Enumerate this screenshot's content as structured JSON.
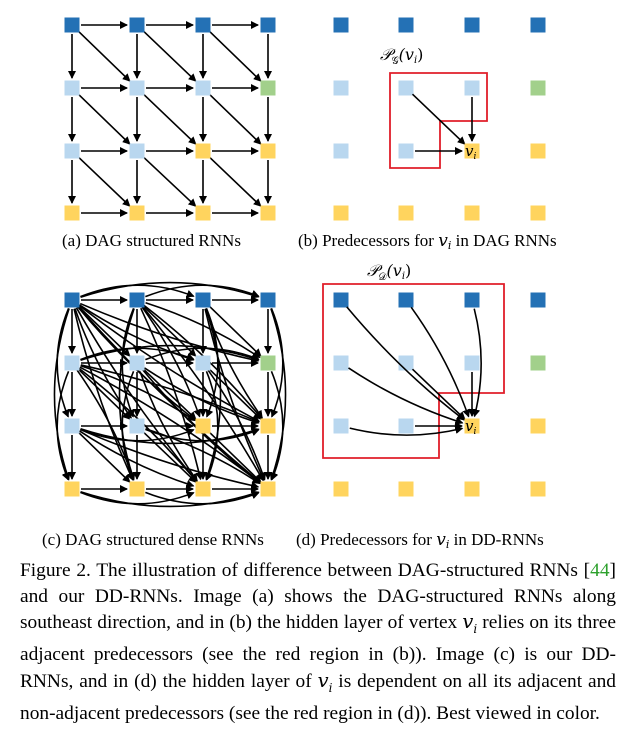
{
  "colors": {
    "dark_blue": "#2471b5",
    "light_blue": "#b9d7ef",
    "green": "#a2d08b",
    "yellow": "#ffd45e",
    "red": "#e01e2a",
    "edge": "#000000"
  },
  "nodes": {
    "row0": [
      "dark_blue",
      "dark_blue",
      "dark_blue",
      "dark_blue"
    ],
    "row1": [
      "light_blue",
      "light_blue",
      "light_blue",
      "green"
    ],
    "row2": [
      "light_blue",
      "light_blue",
      "yellow",
      "yellow"
    ],
    "row3": [
      "yellow",
      "yellow",
      "yellow",
      "yellow"
    ]
  },
  "panels": {
    "a": {
      "label": "(a) DAG structured RNNs"
    },
    "b": {
      "label_prefix": "(b) Predecessors for ",
      "label_var": "v",
      "label_sub": "i",
      "label_suffix": " in DAG RNNs",
      "set_title": "𝒫",
      "set_sub": "𝒢",
      "set_arg": "(v",
      "set_arg_sub": "i",
      "set_close": ")",
      "node_var": "v",
      "node_sub": "i"
    },
    "c": {
      "label": "(c) DAG structured dense RNNs"
    },
    "d": {
      "label_prefix": "(d) Predecessors for ",
      "label_var": "v",
      "label_sub": "i",
      "label_suffix": " in  DD-RNNs",
      "set_title": "𝒫",
      "set_sub": "𝒟",
      "set_arg": "(v",
      "set_arg_sub": "i",
      "set_close": ")",
      "node_var": "v",
      "node_sub": "i"
    }
  },
  "caption": {
    "part1": "Figure 2. The illustration of difference between DAG-structured RNNs [",
    "citation": "44",
    "part2": "] and our DD-RNNs.  Image (a) shows the DAG-structured RNNs along southeast direction, and in (b) the hidden layer of vertex ",
    "var1": "v",
    "sub1": "i",
    "part3": " relies on its three adjacent predecessors (see the red region in (b)). Image (c) is our DD-RNNs, and in (d) the hidden layer of ",
    "var2": "v",
    "sub2": "i",
    "part4": " is dependent on all its adjacent and non-adjacent predecessors (see the red region in (d)). Best viewed in color."
  }
}
